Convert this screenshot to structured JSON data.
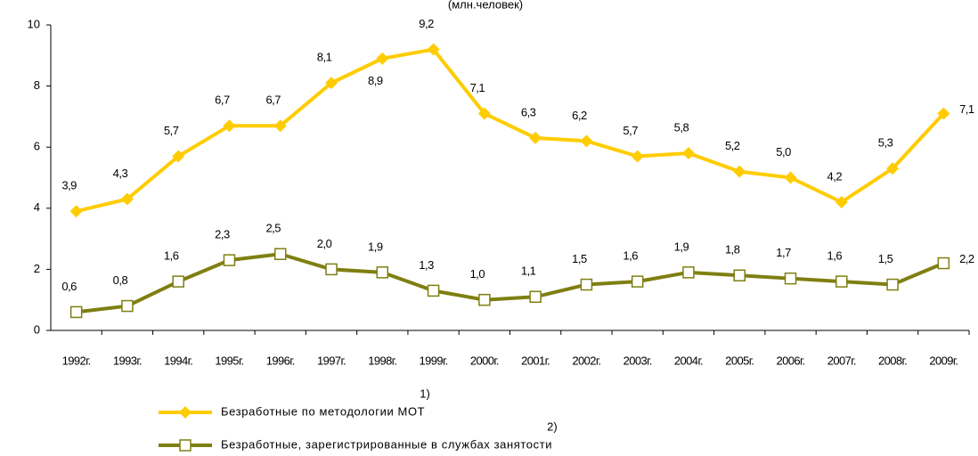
{
  "chart_data": {
    "type": "line",
    "subtitle": "(млн.человек)",
    "categories": [
      "1992г.",
      "1993г.",
      "1994г.",
      "1995г.",
      "1996г.",
      "1997г.",
      "1998г.",
      "1999г.",
      "2000г.",
      "2001г.",
      "2002г.",
      "2003г.",
      "2004г.",
      "2005г.",
      "2006г.",
      "2007г.",
      "2008г.",
      "2009г."
    ],
    "series": [
      {
        "name": "Безработные по методологии МОТ",
        "note": "1)",
        "color": "#ffcc00",
        "marker": "diamond",
        "values": [
          3.9,
          4.3,
          5.7,
          6.7,
          6.7,
          8.1,
          8.9,
          9.2,
          7.1,
          6.3,
          6.2,
          5.7,
          5.8,
          5.2,
          5.0,
          4.2,
          5.3,
          7.1
        ],
        "value_labels": [
          "3,9",
          "4,3",
          "5,7",
          "6,7",
          "6,7",
          "8,1",
          "8,9",
          "9,2",
          "7,1",
          "6,3",
          "6,2",
          "5,7",
          "5,8",
          "5,2",
          "5,0",
          "4,2",
          "5,3",
          "7,1"
        ]
      },
      {
        "name": "Безработные, зарегистрированные в службах занятости",
        "note": "2)",
        "color": "#7f7f12",
        "marker": "square",
        "values": [
          0.6,
          0.8,
          1.6,
          2.3,
          2.5,
          2.0,
          1.9,
          1.3,
          1.0,
          1.1,
          1.5,
          1.6,
          1.9,
          1.8,
          1.7,
          1.6,
          1.5,
          2.2
        ],
        "value_labels": [
          "0,6",
          "0,8",
          "1,6",
          "2,3",
          "2,5",
          "2,0",
          "1,9",
          "1,3",
          "1,0",
          "1,1",
          "1,5",
          "1,6",
          "1,9",
          "1,8",
          "1,7",
          "1,6",
          "1,5",
          "2,2"
        ]
      }
    ],
    "ylim": [
      0,
      10
    ],
    "yticks": [
      0,
      2,
      4,
      6,
      8,
      10
    ],
    "grid": false
  }
}
